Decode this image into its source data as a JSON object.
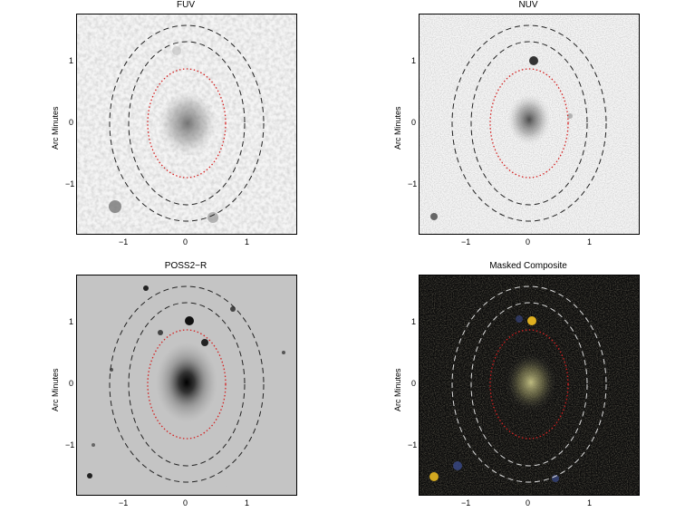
{
  "panels": [
    {
      "title": "FUV",
      "ylabel": "Arc Minutes",
      "scheme": "light",
      "ellipse_color": "#222222"
    },
    {
      "title": "NUV",
      "ylabel": "Arc Minutes",
      "scheme": "light-noisy",
      "ellipse_color": "#222222"
    },
    {
      "title": "POSS2−R",
      "ylabel": "Arc Minutes",
      "scheme": "gray",
      "ellipse_color": "#222222"
    },
    {
      "title": "Masked Composite",
      "ylabel": "Arc Minutes",
      "scheme": "dark",
      "ellipse_color": "#dddddd"
    }
  ],
  "axes": {
    "y_ticks": [
      "1",
      "0",
      "−1"
    ],
    "x_ticks": [
      "−1",
      "0",
      "1"
    ]
  },
  "inner_ellipse_color": "#d42020"
}
